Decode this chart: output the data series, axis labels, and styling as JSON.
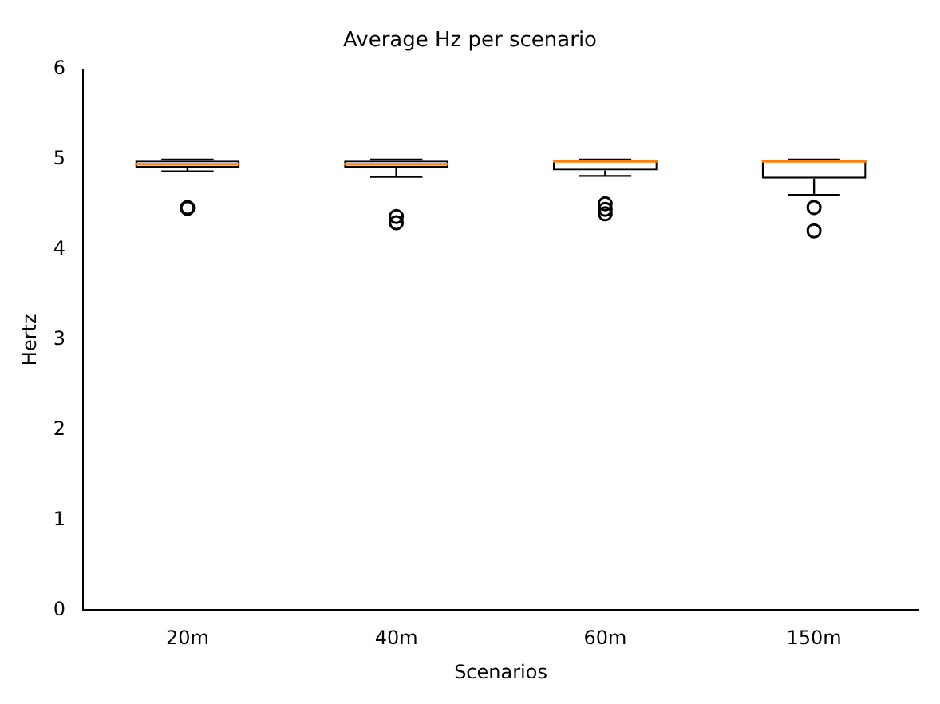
{
  "chart_data": {
    "type": "box",
    "title": "Average Hz per scenario",
    "xlabel": "Scenarios",
    "ylabel": "Hertz",
    "categories": [
      "20m",
      "40m",
      "60m",
      "150m"
    ],
    "boxes": [
      {
        "low": 4.87,
        "q1": 4.91,
        "median": 4.95,
        "q3": 4.99,
        "high": 5.0,
        "outliers": [
          4.46,
          4.47
        ]
      },
      {
        "low": 4.81,
        "q1": 4.91,
        "median": 4.95,
        "q3": 4.99,
        "high": 5.0,
        "outliers": [
          4.37,
          4.3
        ]
      },
      {
        "low": 4.82,
        "q1": 4.88,
        "median": 4.98,
        "q3": 5.0,
        "high": 5.0,
        "outliers": [
          4.51,
          4.45,
          4.4
        ]
      },
      {
        "low": 4.61,
        "q1": 4.79,
        "median": 4.98,
        "q3": 5.0,
        "high": 5.0,
        "outliers": [
          4.47,
          4.21
        ]
      }
    ],
    "color": "#000000",
    "ylim": [
      0,
      6
    ],
    "yticks": [
      0,
      1,
      2,
      3,
      4,
      5,
      6
    ],
    "grid": false,
    "legend": false
  }
}
